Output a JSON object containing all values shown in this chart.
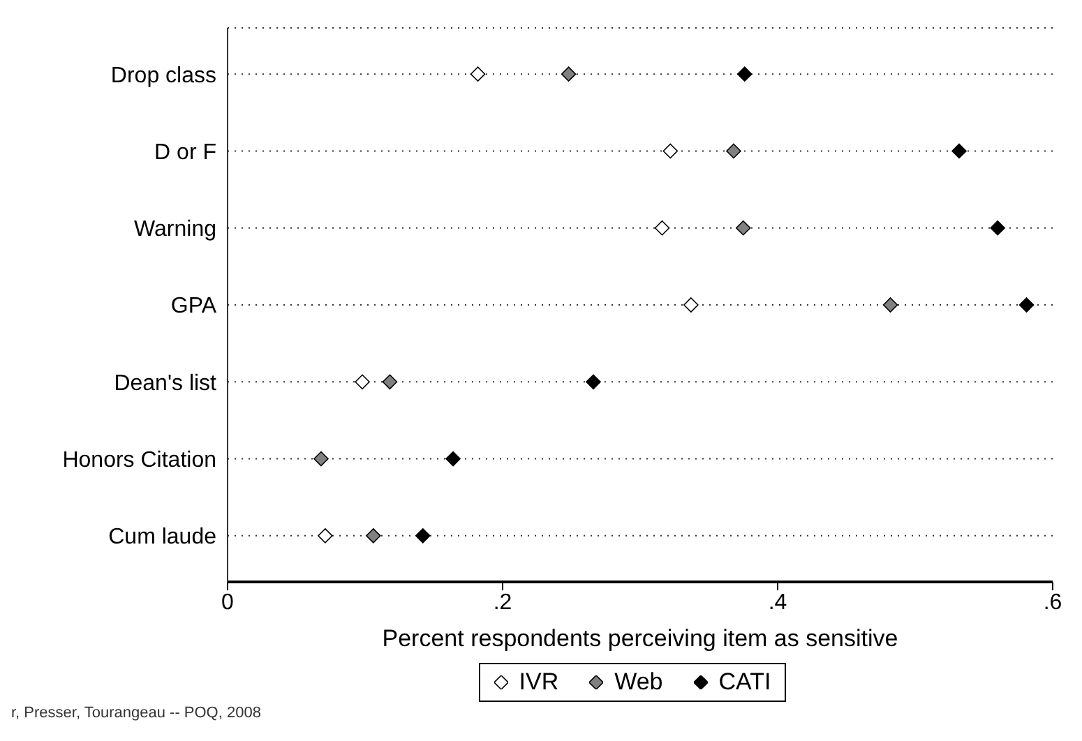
{
  "chart_data": {
    "type": "scatter",
    "orientation": "horizontal",
    "xlabel": "Percent respondents perceiving item as sensitive",
    "categories": [
      "Drop class",
      "D or F",
      "Warning",
      "GPA",
      "Dean's list",
      "Honors Citation",
      "Cum laude"
    ],
    "series": [
      {
        "name": "IVR",
        "color": "#ffffff",
        "values": [
          0.182,
          0.322,
          0.316,
          0.337,
          0.098,
          null,
          0.071
        ]
      },
      {
        "name": "Web",
        "color": "#808080",
        "values": [
          0.248,
          0.368,
          0.375,
          0.482,
          0.118,
          0.068,
          0.106
        ]
      },
      {
        "name": "CATI",
        "color": "#000000",
        "values": [
          0.376,
          0.532,
          0.56,
          0.581,
          0.266,
          0.164,
          0.142
        ]
      }
    ],
    "xlim": [
      0,
      0.6
    ],
    "xticks": [
      0,
      {
        "value": 0.2,
        "label": ".2"
      },
      {
        "value": 0.4,
        "label": ".4"
      },
      {
        "value": 0.6,
        "label": ".6"
      }
    ],
    "grid": "y",
    "legend": "bottom",
    "marker": "diamond",
    "annotations": [
      "r, Presser, Tourangeau -- POQ, 2008"
    ]
  }
}
